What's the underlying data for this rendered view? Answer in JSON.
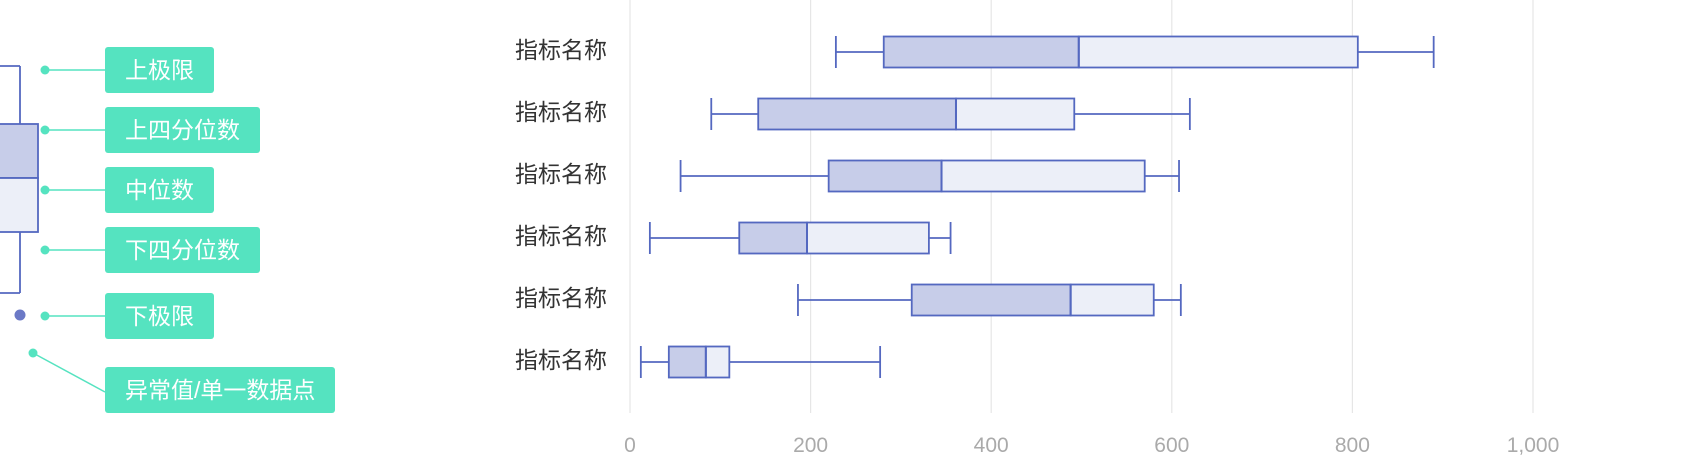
{
  "legend": {
    "items": [
      {
        "key": "upper",
        "label": "上极限"
      },
      {
        "key": "q3",
        "label": "上四分位数"
      },
      {
        "key": "median",
        "label": "中位数"
      },
      {
        "key": "q1",
        "label": "下四分位数"
      },
      {
        "key": "lower",
        "label": "下极限"
      },
      {
        "key": "outlier",
        "label": "异常值/单一数据点"
      }
    ]
  },
  "colors": {
    "accent": "#55e3c0",
    "box_stroke": "#5468c0",
    "box_lower_fill": "#c7cde9",
    "box_upper_fill": "#eceff8",
    "grid": "#e6e6e6",
    "tick_text": "#aaaaaa",
    "category_text": "#333333"
  },
  "chart_data": {
    "type": "boxplot",
    "orientation": "horizontal",
    "title": "",
    "xlabel": "",
    "ylabel": "",
    "xlim": [
      0,
      1000
    ],
    "xticks": [
      0,
      200,
      400,
      600,
      800,
      1000
    ],
    "xtick_labels": [
      "0",
      "200",
      "400",
      "600",
      "800",
      "1,000"
    ],
    "grid": "vertical",
    "categories": [
      "指标名称",
      "指标名称",
      "指标名称",
      "指标名称",
      "指标名称",
      "指标名称"
    ],
    "boxes": [
      {
        "low": 228,
        "q1": 281,
        "median": 497,
        "q3": 806,
        "high": 890
      },
      {
        "low": 90,
        "q1": 142,
        "median": 361,
        "q3": 492,
        "high": 620
      },
      {
        "low": 56,
        "q1": 220,
        "median": 345,
        "q3": 570,
        "high": 608
      },
      {
        "low": 22,
        "q1": 121,
        "median": 196,
        "q3": 331,
        "high": 355
      },
      {
        "low": 186,
        "q1": 312,
        "median": 488,
        "q3": 580,
        "high": 610
      },
      {
        "low": 12,
        "q1": 43,
        "median": 84,
        "q3": 110,
        "high": 277
      }
    ]
  }
}
